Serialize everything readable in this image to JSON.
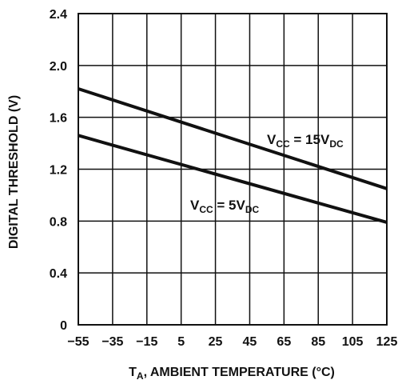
{
  "chart_data": {
    "type": "line",
    "title": "",
    "xlabel": {
      "main": "T",
      "sub": "A",
      "rest": ", AMBIENT TEMPERATURE (°C)"
    },
    "ylabel": "DIGITAL THRESHOLD (V)",
    "xlim": [
      -55,
      125
    ],
    "ylim": [
      0,
      2.4
    ],
    "x_ticks": [
      -55,
      -35,
      -15,
      5,
      25,
      45,
      65,
      85,
      105,
      125
    ],
    "x_tick_labels": [
      "−55",
      "−35",
      "−15",
      "5",
      "25",
      "45",
      "65",
      "85",
      "105",
      "125"
    ],
    "y_ticks": [
      0,
      0.4,
      0.8,
      1.2,
      1.6,
      2.0,
      2.4
    ],
    "y_tick_labels": [
      "0",
      "0.4",
      "0.8",
      "1.2",
      "1.6",
      "2.0",
      "2.4"
    ],
    "grid": true,
    "series": [
      {
        "label_parts": {
          "v": "V",
          "sub1": "CC",
          "eq": " = 15V",
          "sub2": "DC"
        },
        "x": [
          -55,
          125
        ],
        "y": [
          1.82,
          1.05
        ]
      },
      {
        "label_parts": {
          "v": "V",
          "sub1": "CC",
          "eq": " = 5V",
          "sub2": "DC"
        },
        "x": [
          -55,
          125
        ],
        "y": [
          1.46,
          0.79
        ]
      }
    ]
  }
}
